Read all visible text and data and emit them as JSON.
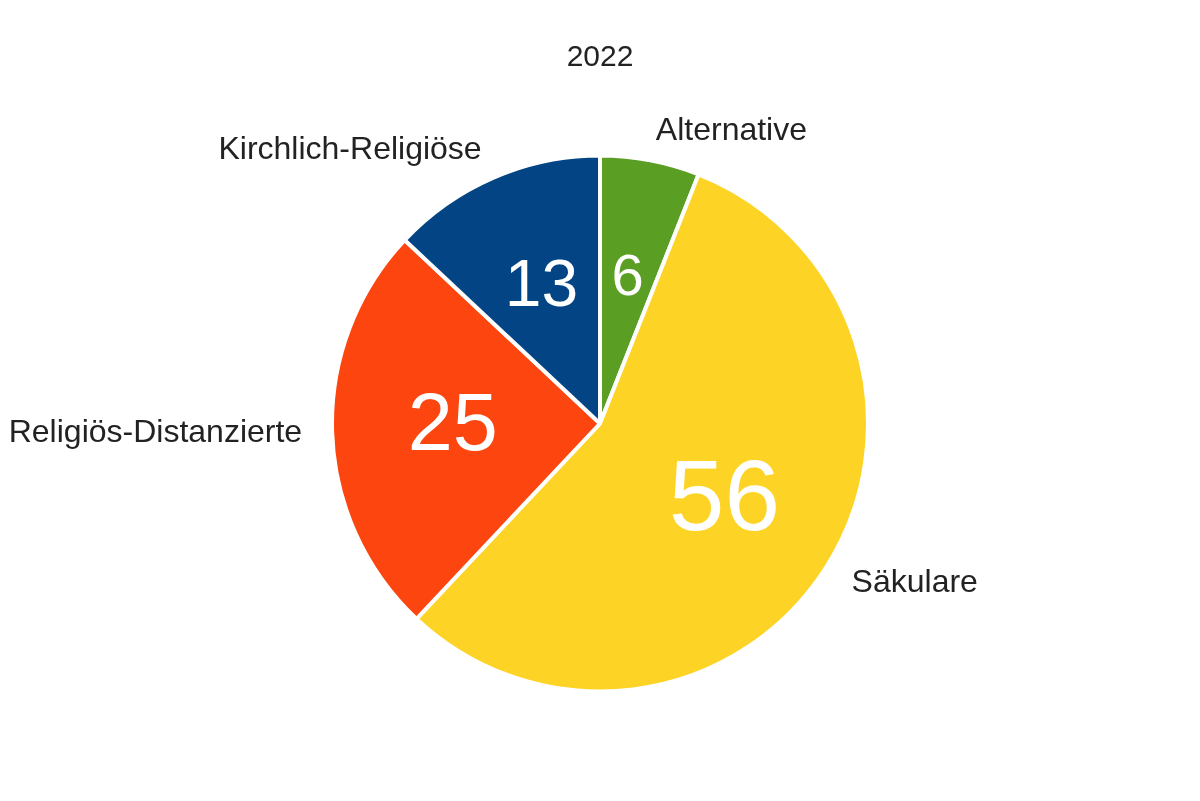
{
  "chart_data": {
    "type": "pie",
    "title": "2022",
    "categories": [
      "Alternative",
      "Säkulare",
      "Religiös-Distanzierte",
      "Kirchlich-Religiöse"
    ],
    "values": [
      6,
      56,
      25,
      13
    ],
    "colors": [
      "#5a9e23",
      "#fdd426",
      "#fd4510",
      "#034584"
    ],
    "data_labels": true,
    "legend": false
  }
}
